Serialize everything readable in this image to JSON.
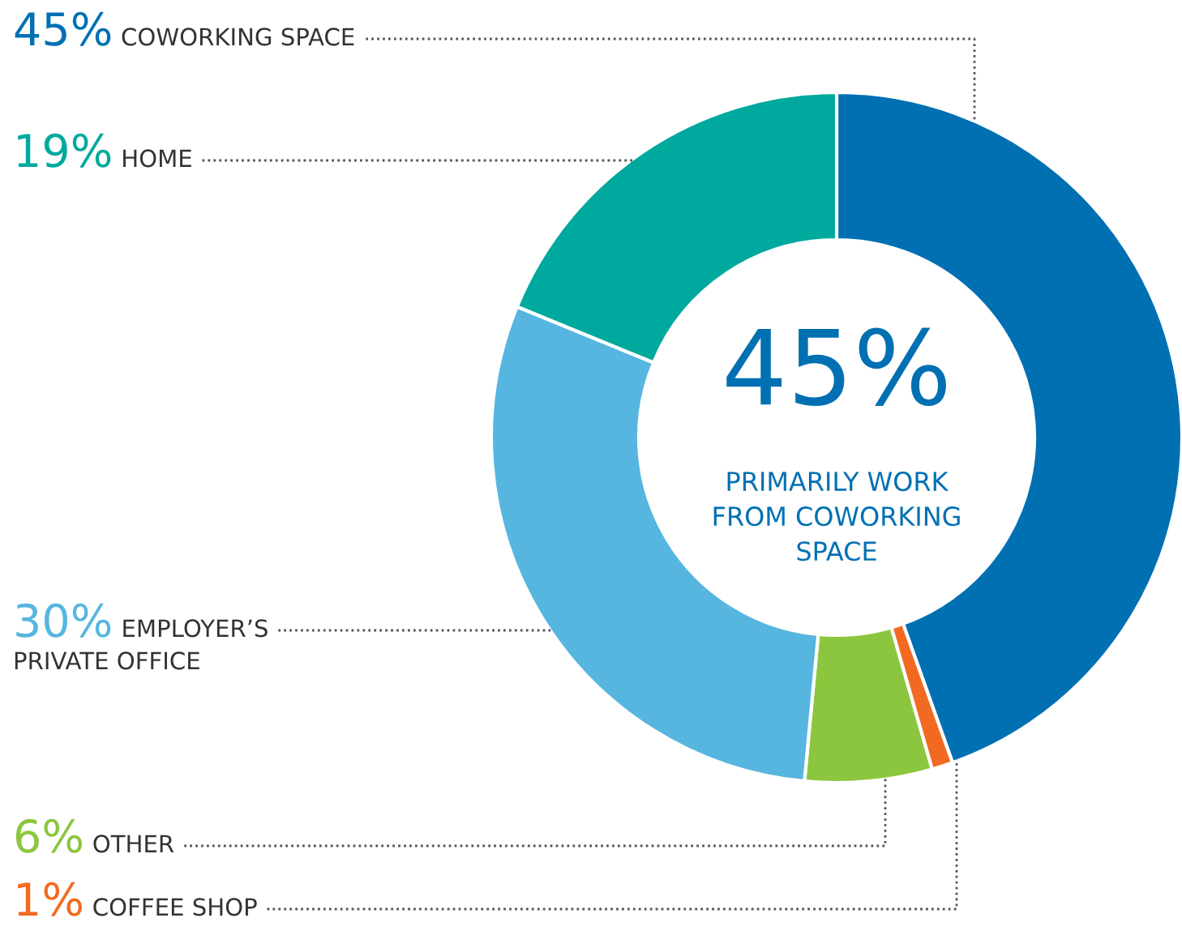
{
  "chart_data": {
    "type": "donut",
    "title": "45%",
    "subtitle": "PRIMARILY WORK\nFROM COWORKING\nSPACE",
    "categories": [
      "COWORKING SPACE",
      "COFFEE SHOP",
      "OTHER",
      "EMPLOYER’S\nPRIVATE OFFICE",
      "HOME"
    ],
    "values": [
      45,
      1,
      6,
      30,
      19
    ],
    "value_labels": [
      "45%",
      "1%",
      "6%",
      "30%",
      "19%"
    ],
    "colors": [
      "#0070b3",
      "#f26a21",
      "#8cc63f",
      "#56b6e0",
      "#00a99d"
    ],
    "legend": false
  }
}
